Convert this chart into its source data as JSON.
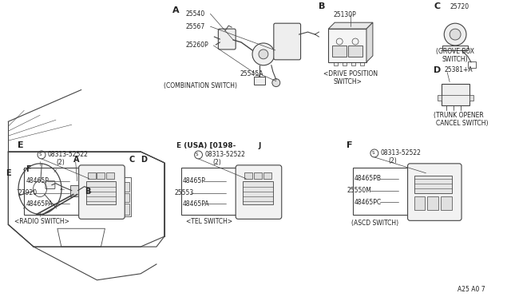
{
  "bg": "#f5f5f0",
  "lc": "#444444",
  "tc": "#222222",
  "fs_small": 5.5,
  "fs_label": 6.5,
  "fs_section": 7.0,
  "fs_heading": 8.5,
  "sections": {
    "A_combo": {
      "title": "(COMBINATION SWITCH)",
      "parts": [
        "25540",
        "25567",
        "25260P",
        "25545A"
      ]
    },
    "B_drive": {
      "title": "<DRIVE POSITION\n    SWITCH>",
      "parts": [
        "25130P"
      ]
    },
    "C_grove": {
      "title": "(GROVE BOX\n SWITCH)",
      "parts": [
        "25720"
      ]
    },
    "D_trunk": {
      "title": "(TRUNK OPENER\nCANCEL SWITCH)",
      "parts": [
        "25381+A"
      ]
    },
    "E_radio": {
      "title": "<RADIO SWITCH>",
      "parts": [
        "08313-52522",
        "(2)",
        "48465P",
        "27920",
        "48465PA"
      ]
    },
    "E_tel": {
      "title": "<TEL SWITCH>",
      "parts": [
        "08313-52522",
        "(2)",
        "48465P",
        "25553",
        "48465PA"
      ]
    },
    "F_ascd": {
      "title": "(ASCD SWITCH)",
      "parts": [
        "08313-52522",
        "(2)",
        "48465PB",
        "25550M",
        "48465PC"
      ]
    }
  },
  "bottom_note": "A25 A0 7"
}
